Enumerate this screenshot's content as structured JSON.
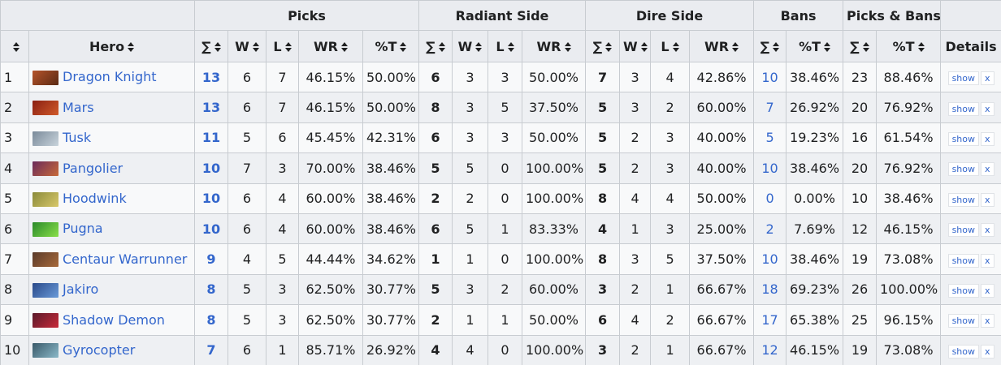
{
  "header": {
    "groups": [
      "Picks",
      "Radiant Side",
      "Dire Side",
      "Bans",
      "Picks & Bans"
    ],
    "columns": [
      "Hero",
      "∑",
      "W",
      "L",
      "WR",
      "%T",
      "∑",
      "W",
      "L",
      "WR",
      "∑",
      "W",
      "L",
      "WR",
      "∑",
      "%T",
      "∑",
      "%T",
      "Details"
    ]
  },
  "rows": [
    [
      1,
      "Dragon Knight",
      13,
      6,
      7,
      "46.15%",
      "50.00%",
      6,
      3,
      3,
      "50.00%",
      7,
      3,
      4,
      "42.86%",
      10,
      "38.46%",
      23,
      "88.46%"
    ],
    [
      2,
      "Mars",
      13,
      6,
      7,
      "46.15%",
      "50.00%",
      8,
      3,
      5,
      "37.50%",
      5,
      3,
      2,
      "60.00%",
      7,
      "26.92%",
      20,
      "76.92%"
    ],
    [
      3,
      "Tusk",
      11,
      5,
      6,
      "45.45%",
      "42.31%",
      6,
      3,
      3,
      "50.00%",
      5,
      2,
      3,
      "40.00%",
      5,
      "19.23%",
      16,
      "61.54%"
    ],
    [
      4,
      "Pangolier",
      10,
      7,
      3,
      "70.00%",
      "38.46%",
      5,
      5,
      0,
      "100.00%",
      5,
      2,
      3,
      "40.00%",
      10,
      "38.46%",
      20,
      "76.92%"
    ],
    [
      5,
      "Hoodwink",
      10,
      6,
      4,
      "60.00%",
      "38.46%",
      2,
      2,
      0,
      "100.00%",
      8,
      4,
      4,
      "50.00%",
      0,
      "0.00%",
      10,
      "38.46%"
    ],
    [
      6,
      "Pugna",
      10,
      6,
      4,
      "60.00%",
      "38.46%",
      6,
      5,
      1,
      "83.33%",
      4,
      1,
      3,
      "25.00%",
      2,
      "7.69%",
      12,
      "46.15%"
    ],
    [
      7,
      "Centaur Warrunner",
      9,
      4,
      5,
      "44.44%",
      "34.62%",
      1,
      1,
      0,
      "100.00%",
      8,
      3,
      5,
      "37.50%",
      10,
      "38.46%",
      19,
      "73.08%"
    ],
    [
      8,
      "Jakiro",
      8,
      5,
      3,
      "62.50%",
      "30.77%",
      5,
      3,
      2,
      "60.00%",
      3,
      2,
      1,
      "66.67%",
      18,
      "69.23%",
      26,
      "100.00%"
    ],
    [
      9,
      "Shadow Demon",
      8,
      5,
      3,
      "62.50%",
      "30.77%",
      2,
      1,
      1,
      "50.00%",
      6,
      4,
      2,
      "66.67%",
      17,
      "65.38%",
      25,
      "96.15%"
    ],
    [
      10,
      "Gyrocopter",
      7,
      6,
      1,
      "85.71%",
      "26.92%",
      4,
      4,
      0,
      "100.00%",
      3,
      2,
      1,
      "66.67%",
      12,
      "46.15%",
      19,
      "73.08%"
    ]
  ],
  "details": {
    "show": "show",
    "remove": "x"
  }
}
